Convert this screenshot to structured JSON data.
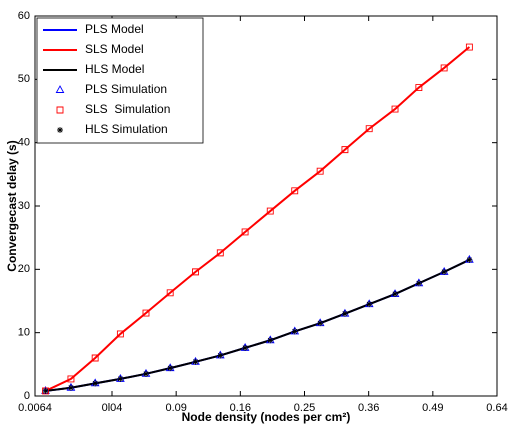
{
  "chart_data": {
    "type": "line",
    "xlabel": "Node density (nodes per cm²)",
    "ylabel": "Convergecast delay (s)",
    "xscale": "sqrt",
    "xlim": [
      0.0064,
      0.64
    ],
    "xticks": [
      0.0064,
      {
        "value": 0.04,
        "label": "0l04"
      },
      0.09,
      0.16,
      0.25,
      0.36,
      0.49,
      0.64
    ],
    "ylim": [
      0,
      60
    ],
    "yticks": [
      0,
      10,
      20,
      30,
      40,
      50,
      60
    ],
    "legend": "top-left",
    "x": [
      0.0093,
      0.0185,
      0.0302,
      0.0454,
      0.064,
      0.0845,
      0.109,
      0.136,
      0.166,
      0.1995,
      0.235,
      0.275,
      0.317,
      0.361,
      0.411,
      0.46,
      0.515,
      0.573
    ],
    "series": [
      {
        "name": "PLS Model",
        "color": "#0000ff",
        "style": "line",
        "values": [
          0.8,
          1.3,
          2.0,
          2.7,
          3.5,
          4.4,
          5.4,
          6.4,
          7.6,
          8.8,
          10.2,
          11.5,
          13.0,
          14.5,
          16.1,
          17.8,
          19.6,
          21.5
        ]
      },
      {
        "name": "SLS Model",
        "color": "#ff0000",
        "style": "line",
        "values": [
          0.8,
          2.7,
          6.0,
          9.8,
          13.1,
          16.3,
          19.6,
          22.6,
          25.9,
          29.2,
          32.4,
          35.5,
          38.9,
          42.2,
          45.3,
          48.7,
          51.8,
          55.1
        ]
      },
      {
        "name": "HLS Model",
        "color": "#000000",
        "style": "line",
        "values": [
          0.8,
          1.3,
          2.0,
          2.7,
          3.5,
          4.4,
          5.4,
          6.4,
          7.6,
          8.8,
          10.2,
          11.5,
          13.0,
          14.5,
          16.1,
          17.8,
          19.6,
          21.5
        ]
      },
      {
        "name": "PLS Simulation",
        "color": "#0000ff",
        "style": "triangle",
        "values": [
          0.8,
          1.3,
          2.0,
          2.7,
          3.5,
          4.4,
          5.4,
          6.4,
          7.6,
          8.8,
          10.2,
          11.5,
          13.0,
          14.5,
          16.1,
          17.8,
          19.6,
          21.5
        ]
      },
      {
        "name": "SLS  Simulation",
        "color": "#ff0000",
        "style": "square",
        "values": [
          0.8,
          2.7,
          6.0,
          9.8,
          13.1,
          16.3,
          19.6,
          22.6,
          25.9,
          29.2,
          32.4,
          35.5,
          38.9,
          42.2,
          45.3,
          48.7,
          51.8,
          55.1
        ]
      },
      {
        "name": "HLS Simulation",
        "color": "#000000",
        "style": "star",
        "values": [
          0.8,
          1.3,
          2.0,
          2.7,
          3.5,
          4.4,
          5.4,
          6.4,
          7.6,
          8.8,
          10.2,
          11.5,
          13.0,
          14.5,
          16.1,
          17.8,
          19.6,
          21.5
        ]
      }
    ]
  }
}
